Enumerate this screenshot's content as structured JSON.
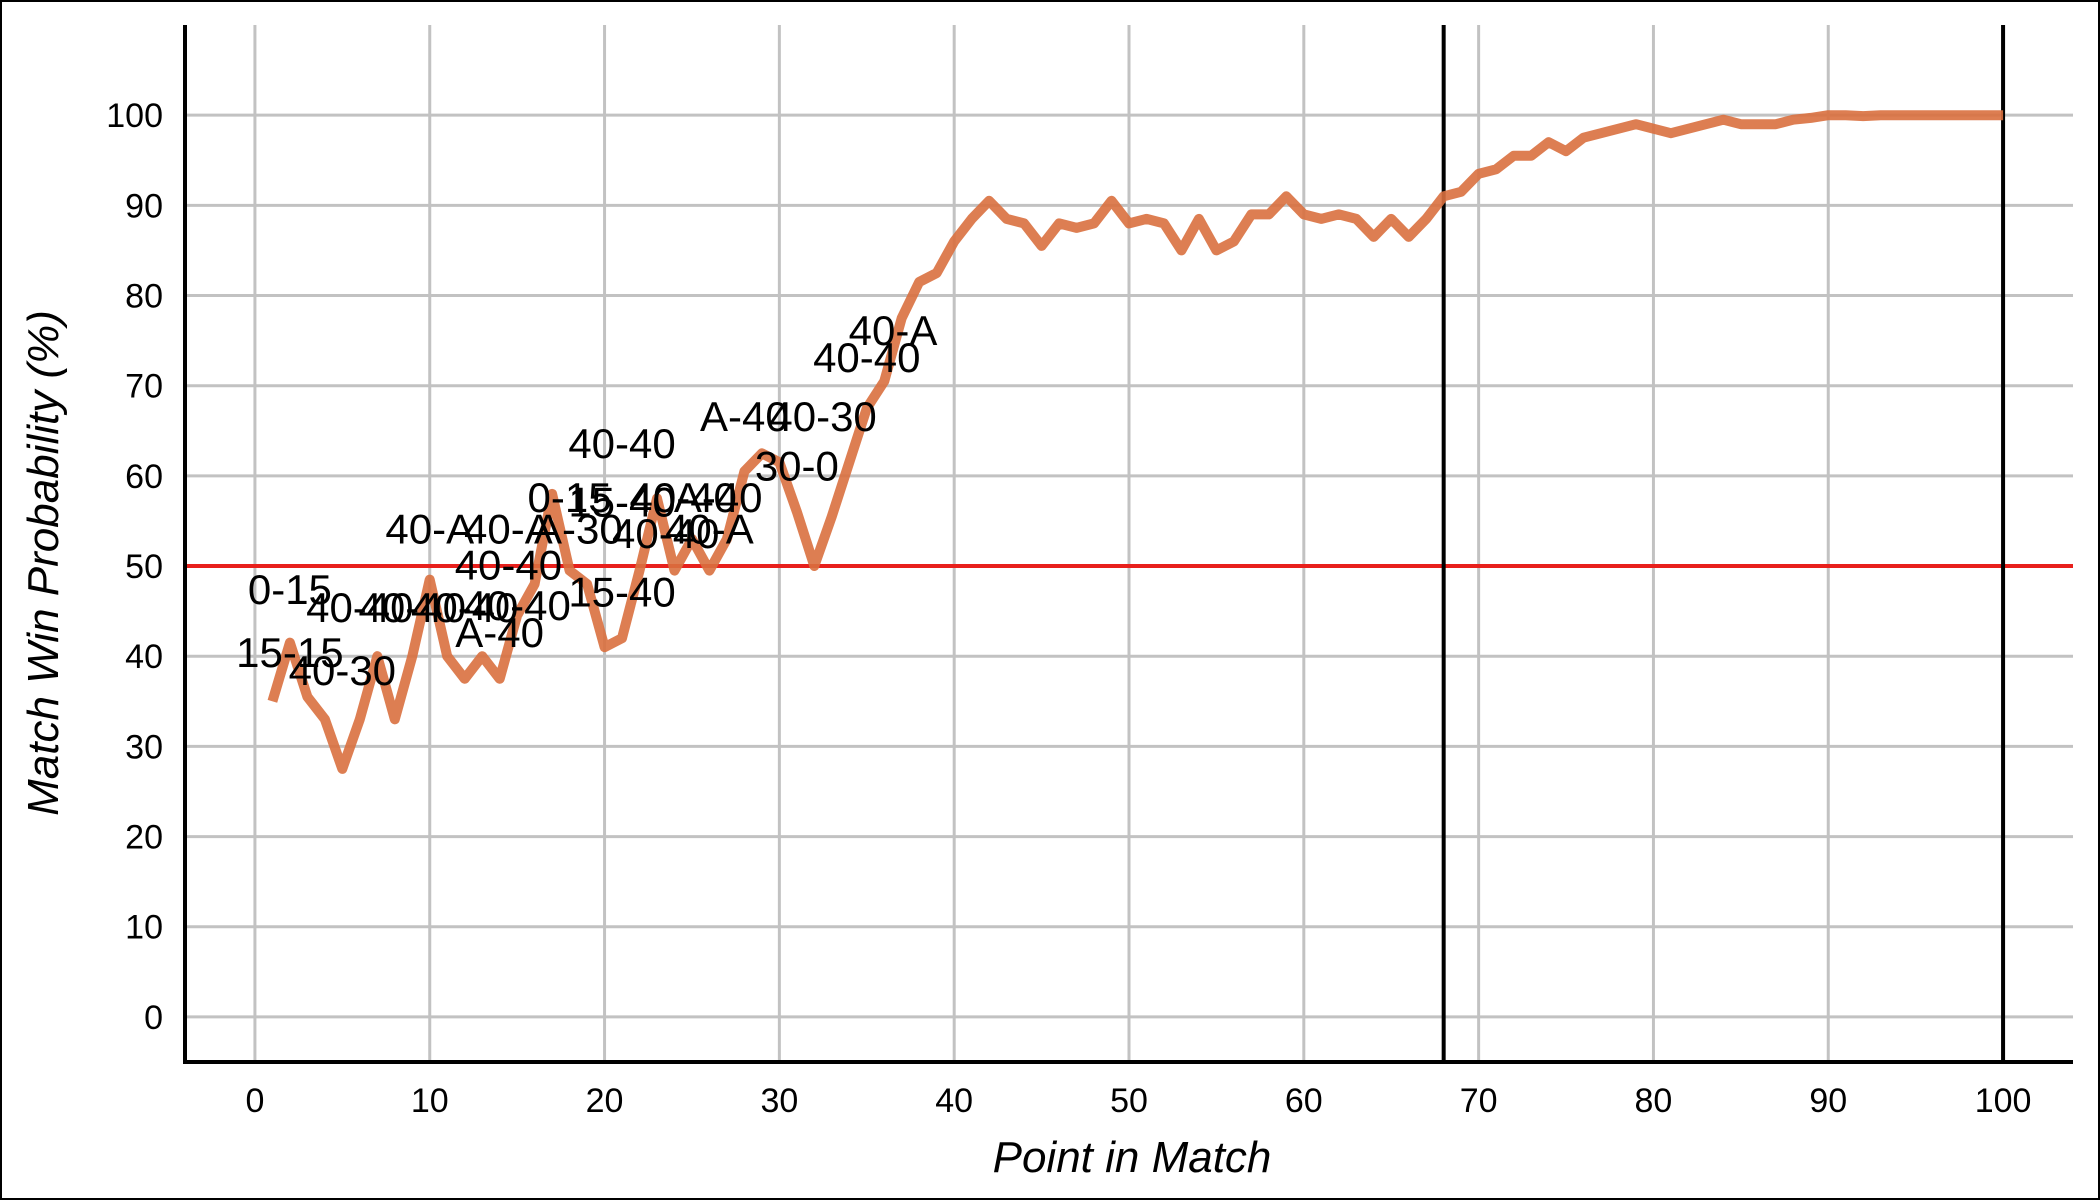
{
  "chart_data": {
    "type": "line",
    "title": "",
    "xlabel": "Point in Match",
    "ylabel": "Match Win Probability (%)",
    "xlim": [
      -4,
      104
    ],
    "ylim": [
      -5,
      110
    ],
    "x_ticks": [
      0,
      10,
      20,
      30,
      40,
      50,
      60,
      70,
      80,
      90,
      100
    ],
    "y_ticks": [
      0,
      10,
      20,
      30,
      40,
      50,
      60,
      70,
      80,
      90,
      100
    ],
    "grid": true,
    "legend": "none",
    "line_color": "#d9703f",
    "reference_line": {
      "y": 50,
      "color": "#e8201c"
    },
    "vertical_lines": [
      68,
      100
    ],
    "series": [
      {
        "x": [
          1,
          2,
          3,
          4,
          5,
          6,
          7,
          8,
          9,
          10,
          11,
          12,
          13,
          14,
          15,
          16,
          17,
          18,
          19,
          20,
          21,
          22,
          23,
          24,
          25,
          26,
          27,
          28,
          29,
          30,
          31,
          32,
          33,
          34,
          35,
          36,
          37,
          38,
          39,
          40,
          41,
          42,
          43,
          44,
          45,
          46,
          47,
          48,
          49,
          50,
          51,
          52,
          53,
          54,
          55,
          56,
          57,
          58,
          59,
          60,
          61,
          62,
          63,
          64,
          65,
          66,
          67,
          68,
          69,
          70,
          71,
          72,
          73,
          74,
          75,
          76,
          77,
          78,
          79,
          80,
          81,
          82,
          83,
          84,
          85,
          86,
          87,
          88,
          89,
          90,
          91,
          92,
          93,
          94,
          95,
          96,
          97,
          98,
          99,
          100
        ],
        "y": [
          35,
          41.5,
          35.5,
          33,
          27.5,
          33,
          40,
          33,
          40,
          48.5,
          40,
          37.5,
          40,
          37.5,
          44.5,
          48,
          58,
          49.5,
          48,
          41,
          42,
          49.5,
          57.5,
          49.5,
          53,
          49.5,
          53,
          60.5,
          62.5,
          61.5,
          56,
          50,
          55.5,
          61.5,
          67.5,
          70.5,
          77.5,
          81.5,
          82.5,
          86,
          88.5,
          90.5,
          88.5,
          88,
          85.5,
          88,
          87.5,
          88,
          90.5,
          88,
          88.5,
          88,
          85,
          88.5,
          85,
          86,
          89,
          89,
          91,
          89,
          88.5,
          89,
          88.5,
          86.5,
          88.5,
          86.5,
          88.5,
          91,
          91.5,
          93.5,
          94,
          95.5,
          95.5,
          97,
          96,
          97.5,
          98,
          98.5,
          99,
          98.5,
          98,
          98.5,
          99,
          99.5,
          99,
          99,
          99,
          99.5,
          99.7,
          100,
          100,
          99.9,
          100,
          100,
          100,
          100,
          100,
          100,
          100,
          100
        ]
      }
    ],
    "annotations": [
      {
        "text": "0-15",
        "x": 2.0,
        "y": 45.8
      },
      {
        "text": "15-15",
        "x": 2.0,
        "y": 38.8
      },
      {
        "text": "40-30",
        "x": 5.0,
        "y": 36.8
      },
      {
        "text": "40-40",
        "x": 6.0,
        "y": 43.8
      },
      {
        "text": "40-40",
        "x": 9.0,
        "y": 43.8
      },
      {
        "text": "40-40",
        "x": 12.0,
        "y": 43.8
      },
      {
        "text": "A-40",
        "x": 14.0,
        "y": 41.0
      },
      {
        "text": "40-40",
        "x": 15.0,
        "y": 44.0
      },
      {
        "text": "40-A",
        "x": 10.0,
        "y": 52.5
      },
      {
        "text": "40-A",
        "x": 14.5,
        "y": 52.5
      },
      {
        "text": "40-40",
        "x": 14.5,
        "y": 48.5
      },
      {
        "text": "0-15",
        "x": 18.0,
        "y": 56.0
      },
      {
        "text": "A-30",
        "x": 18.5,
        "y": 52.5
      },
      {
        "text": "15-40",
        "x": 21.0,
        "y": 55.5
      },
      {
        "text": "40-40",
        "x": 23.5,
        "y": 52.0
      },
      {
        "text": "40-40",
        "x": 24.5,
        "y": 56.0
      },
      {
        "text": "40-A",
        "x": 26.0,
        "y": 52.5
      },
      {
        "text": "A-40",
        "x": 26.5,
        "y": 56.0
      },
      {
        "text": "40-40",
        "x": 21.0,
        "y": 62.0
      },
      {
        "text": "15-40",
        "x": 21.0,
        "y": 45.5
      },
      {
        "text": "A-40",
        "x": 28.0,
        "y": 65.0
      },
      {
        "text": "40-30",
        "x": 32.5,
        "y": 65.0
      },
      {
        "text": "30-0",
        "x": 31.0,
        "y": 59.5
      },
      {
        "text": "40-40",
        "x": 35.0,
        "y": 71.5
      },
      {
        "text": "40-A",
        "x": 36.5,
        "y": 74.5
      }
    ]
  }
}
